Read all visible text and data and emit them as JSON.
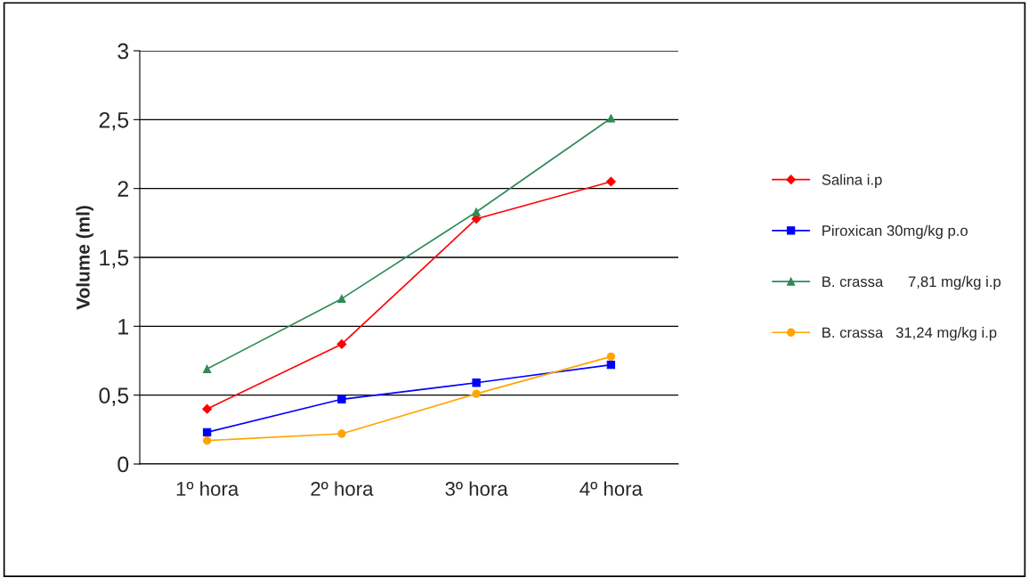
{
  "chart_data": {
    "type": "line",
    "ylabel": "Volume (ml)",
    "categories": [
      "1º hora",
      "2º hora",
      "3º hora",
      "4º hora"
    ],
    "series": [
      {
        "name": "Salina i.p",
        "color": "#ff0000",
        "marker": "diamond",
        "values": [
          0.4,
          0.87,
          1.78,
          2.05
        ]
      },
      {
        "name": "Piroxican 30mg/kg p.o",
        "color": "#0000ff",
        "marker": "square",
        "values": [
          0.23,
          0.47,
          0.59,
          0.72
        ]
      },
      {
        "name": "B. crassa      7,81 mg/kg i.p",
        "color": "#2e8b57",
        "marker": "triangle",
        "values": [
          0.69,
          1.2,
          1.83,
          2.51
        ]
      },
      {
        "name": "B. crassa   31,24 mg/kg i.p",
        "color": "#ffa500",
        "marker": "circle",
        "values": [
          0.17,
          0.22,
          0.51,
          0.78
        ]
      }
    ],
    "ylim": [
      0,
      3
    ],
    "yticks": [
      {
        "value": 0,
        "label": "0"
      },
      {
        "value": 0.5,
        "label": "0,5"
      },
      {
        "value": 1,
        "label": "1"
      },
      {
        "value": 1.5,
        "label": "1,5"
      },
      {
        "value": 2,
        "label": "2"
      },
      {
        "value": 2.5,
        "label": "2,5"
      },
      {
        "value": 3,
        "label": "3"
      }
    ],
    "grid": "y",
    "legend": "right",
    "line_style": "solid"
  }
}
